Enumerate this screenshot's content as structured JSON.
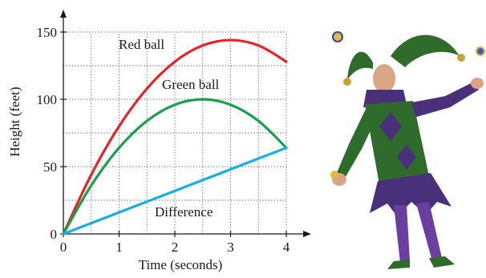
{
  "chart_data": {
    "type": "line",
    "xlabel": "Time (seconds)",
    "ylabel": "Height (feet)",
    "xlim": [
      0,
      4
    ],
    "ylim": [
      0,
      150
    ],
    "x_ticks": [
      "0",
      "1",
      "2",
      "3",
      "4"
    ],
    "y_ticks": [
      "0",
      "50",
      "100",
      "150"
    ],
    "grid": true,
    "series": [
      {
        "name": "Red ball",
        "color": "#e4242b",
        "x": [
          0,
          0.5,
          1,
          1.5,
          2,
          2.5,
          3,
          3.5,
          4
        ],
        "y": [
          0,
          44,
          80,
          108,
          128,
          140,
          144,
          140,
          128
        ]
      },
      {
        "name": "Green ball",
        "color": "#1aa04a",
        "x": [
          0,
          0.5,
          1,
          1.5,
          2,
          2.5,
          3,
          3.5,
          4
        ],
        "y": [
          0,
          36,
          64,
          84,
          96,
          100,
          96,
          84,
          64
        ]
      },
      {
        "name": "Difference",
        "color": "#16aee6",
        "x": [
          0,
          0.5,
          1,
          1.5,
          2,
          2.5,
          3,
          3.5,
          4
        ],
        "y": [
          0,
          8,
          16,
          24,
          32,
          40,
          48,
          56,
          64
        ]
      }
    ]
  },
  "illustration": {
    "icon": "juggling-jester-icon",
    "colors": {
      "costume_green": "#2f6b2a",
      "costume_purple": "#4a2f7a",
      "skin": "#d9a584",
      "gold": "#c8a23a"
    }
  }
}
